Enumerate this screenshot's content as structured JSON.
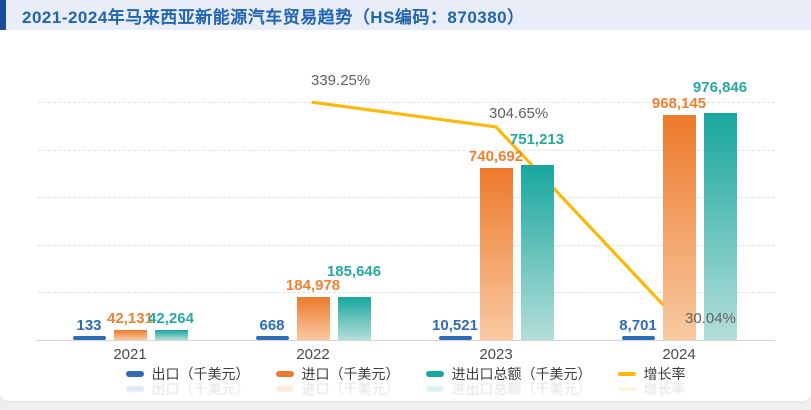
{
  "chart_data": {
    "type": "bar",
    "title": "2021-2024年马来西亚新能源汽车贸易趋势（HS编码：870380）",
    "categories": [
      "2021",
      "2022",
      "2023",
      "2024"
    ],
    "series": [
      {
        "name": "出口（千美元）",
        "type": "bar",
        "color": "#2e6db4",
        "label_color": "#2f6cb3",
        "values": [
          133,
          668,
          10521,
          8701
        ],
        "labels": [
          "133",
          "668",
          "10,521",
          "8,701"
        ]
      },
      {
        "name": "进口（千美元）",
        "type": "bar",
        "color_top": "#ed7a2c",
        "color_bottom": "#f9c9a2",
        "label_color": "#ef8132",
        "values": [
          42131,
          184978,
          740692,
          968145
        ],
        "labels": [
          "42,131",
          "184,978",
          "740,692",
          "968,145"
        ]
      },
      {
        "name": "进出口总额（千美元）",
        "type": "bar",
        "color_top": "#17a79e",
        "color_bottom": "#b5ded9",
        "label_color": "#27a89f",
        "values": [
          42264,
          185646,
          751213,
          976846
        ],
        "labels": [
          "42,264",
          "185,646",
          "751,213",
          "976,846"
        ]
      },
      {
        "name": "增长率",
        "type": "line",
        "color": "#fbba07",
        "label_color": "#5f6063",
        "values": [
          null,
          339.25,
          304.65,
          30.04
        ],
        "labels": [
          null,
          "339.25%",
          "304.65%",
          "30.04%"
        ]
      }
    ],
    "ylim": [
      0,
      1000000
    ],
    "grid": "dashed-horizontal",
    "legend_position": "bottom"
  },
  "colors": {
    "title_text": "#2165af",
    "title_band_bg": "#e9edf8",
    "title_accent": "#1a4a9c",
    "axis_line": "#d6d6d6",
    "gridline": "#e3e3e3",
    "percent_label": "#5f6063",
    "x_label": "#4b4b50",
    "card_bg": "#ffffff",
    "page_bg": "#efefef"
  }
}
